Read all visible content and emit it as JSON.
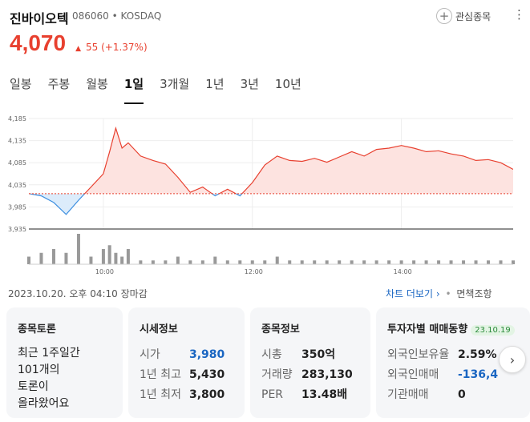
{
  "stock": {
    "name": "진바이오텍",
    "code": "086060",
    "market": "KOSDAQ",
    "code_market": "086060 • KOSDAQ",
    "price": "4,070",
    "change": "55 (+1.37%)",
    "change_icon": "up-triangle-icon",
    "color_up": "#e8402f"
  },
  "actions": {
    "favorite_label": "관심종목",
    "more_icon": "more-vertical-icon"
  },
  "tabs": [
    {
      "label": "일봉",
      "active": false
    },
    {
      "label": "주봉",
      "active": false
    },
    {
      "label": "월봉",
      "active": false
    },
    {
      "label": "1일",
      "active": true
    },
    {
      "label": "3개월",
      "active": false
    },
    {
      "label": "1년",
      "active": false
    },
    {
      "label": "3년",
      "active": false
    },
    {
      "label": "10년",
      "active": false
    }
  ],
  "chart_data": {
    "type": "area",
    "y_ticks": [
      "4,185",
      "4,135",
      "4,085",
      "4,035",
      "3,985",
      "3,935"
    ],
    "ylim": [
      3935,
      4185
    ],
    "x_ticks": [
      "10:00",
      "12:00",
      "14:00"
    ],
    "x": [
      "09:00",
      "09:10",
      "09:20",
      "09:30",
      "09:40",
      "09:50",
      "10:00",
      "10:05",
      "10:10",
      "10:15",
      "10:20",
      "10:30",
      "10:40",
      "10:50",
      "11:00",
      "11:10",
      "11:20",
      "11:30",
      "11:40",
      "11:50",
      "12:00",
      "12:10",
      "12:20",
      "12:30",
      "12:40",
      "12:50",
      "13:00",
      "13:10",
      "13:20",
      "13:30",
      "13:40",
      "13:50",
      "14:00",
      "14:10",
      "14:20",
      "14:30",
      "14:40",
      "14:50",
      "15:00",
      "15:10",
      "15:20",
      "15:30"
    ],
    "values": [
      4015,
      4010,
      3995,
      3968,
      4000,
      4030,
      4060,
      4110,
      4163,
      4118,
      4130,
      4100,
      4090,
      4082,
      4052,
      4018,
      4030,
      4010,
      4025,
      4010,
      4040,
      4080,
      4100,
      4090,
      4088,
      4095,
      4086,
      4098,
      4110,
      4100,
      4115,
      4118,
      4124,
      4118,
      4110,
      4112,
      4105,
      4100,
      4090,
      4092,
      4085,
      4070
    ],
    "volume": [
      2,
      3,
      4,
      3,
      8,
      2,
      4,
      5,
      3,
      2,
      4,
      1,
      1,
      1,
      2,
      1,
      1,
      2,
      1,
      1,
      1,
      1,
      2,
      1,
      1,
      1,
      1,
      1,
      1,
      1,
      1,
      1,
      1,
      1,
      1,
      1,
      1,
      1,
      1,
      1,
      1,
      1
    ],
    "baseline": 4015,
    "color_above": "#e8402f",
    "color_below": "#3d8fe0"
  },
  "meta": {
    "timestamp": "2023.10.20. 오후 04:10 장마감"
  },
  "chart_links": {
    "more": "차트 더보기",
    "chevron": "›",
    "disclaimer": "면책조항"
  },
  "cards": {
    "discussion": {
      "title": "종목토론",
      "body": "최근 1주일간\n101개의\n토론이\n올라왔어요"
    },
    "market": {
      "title": "시세정보",
      "rows": [
        {
          "k": "시가",
          "v": "3,980"
        },
        {
          "k": "1년 최고",
          "v": "5,430"
        },
        {
          "k": "1년 최저",
          "v": "3,800"
        }
      ]
    },
    "info": {
      "title": "종목정보",
      "rows": [
        {
          "k": "시총",
          "v": "350억"
        },
        {
          "k": "거래량",
          "v": "283,130"
        },
        {
          "k": "PER",
          "v": "13.48배"
        }
      ]
    },
    "investor": {
      "title": "투자자별 매매동향",
      "badge": "23.10.19",
      "rows": [
        {
          "k": "외국인보유율",
          "v": "2.59%"
        },
        {
          "k": "외국인매매",
          "v": "-136,4"
        },
        {
          "k": "기관매매",
          "v": "0"
        }
      ]
    }
  }
}
